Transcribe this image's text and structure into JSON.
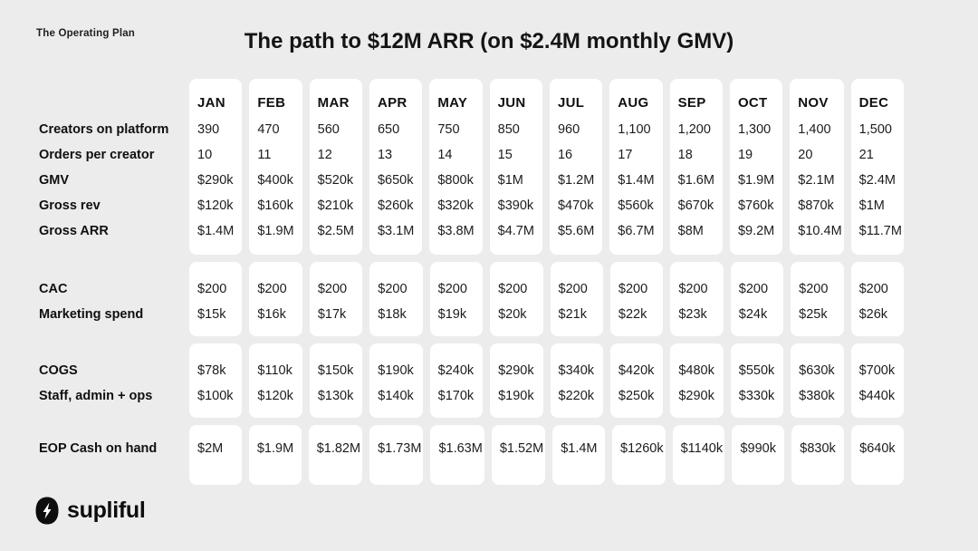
{
  "header": {
    "eyebrow": "The Operating Plan"
  },
  "footer": {
    "brand": "supliful",
    "logo_icon": "lightning-bolt-badge"
  },
  "colors": {
    "background": "#ececec",
    "card": "#ffffff",
    "text": "#1c1c1c"
  },
  "chart_data": {
    "type": "table",
    "title": "The path to $12M ARR (on $2.4M monthly GMV)",
    "columns": [
      "JAN",
      "FEB",
      "MAR",
      "APR",
      "MAY",
      "JUN",
      "JUL",
      "AUG",
      "SEP",
      "OCT",
      "NOV",
      "DEC"
    ],
    "sections": [
      {
        "show_month_header": true,
        "rows": [
          {
            "label": "Creators on platform",
            "values": [
              "390",
              "470",
              "560",
              "650",
              "750",
              "850",
              "960",
              "1,100",
              "1,200",
              "1,300",
              "1,400",
              "1,500"
            ]
          },
          {
            "label": "Orders per creator",
            "values": [
              "10",
              "11",
              "12",
              "13",
              "14",
              "15",
              "16",
              "17",
              "18",
              "19",
              "20",
              "21"
            ]
          },
          {
            "label": "GMV",
            "values": [
              "$290k",
              "$400k",
              "$520k",
              "$650k",
              "$800k",
              "$1M",
              "$1.2M",
              "$1.4M",
              "$1.6M",
              "$1.9M",
              "$2.1M",
              "$2.4M"
            ]
          },
          {
            "label": "Gross rev",
            "values": [
              "$120k",
              "$160k",
              "$210k",
              "$260k",
              "$320k",
              "$390k",
              "$470k",
              "$560k",
              "$670k",
              "$760k",
              "$870k",
              "$1M"
            ]
          },
          {
            "label": "Gross ARR",
            "values": [
              "$1.4M",
              "$1.9M",
              "$2.5M",
              "$3.1M",
              "$3.8M",
              "$4.7M",
              "$5.6M",
              "$6.7M",
              "$8M",
              "$9.2M",
              "$10.4M",
              "$11.7M"
            ]
          }
        ]
      },
      {
        "show_month_header": false,
        "rows": [
          {
            "label": "CAC",
            "values": [
              "$200",
              "$200",
              "$200",
              "$200",
              "$200",
              "$200",
              "$200",
              "$200",
              "$200",
              "$200",
              "$200",
              "$200"
            ]
          },
          {
            "label": "Marketing spend",
            "values": [
              "$15k",
              "$16k",
              "$17k",
              "$18k",
              "$19k",
              "$20k",
              "$21k",
              "$22k",
              "$23k",
              "$24k",
              "$25k",
              "$26k"
            ]
          }
        ]
      },
      {
        "show_month_header": false,
        "rows": [
          {
            "label": "COGS",
            "values": [
              "$78k",
              "$110k",
              "$150k",
              "$190k",
              "$240k",
              "$290k",
              "$340k",
              "$420k",
              "$480k",
              "$550k",
              "$630k",
              "$700k"
            ]
          },
          {
            "label": "Staff, admin + ops",
            "values": [
              "$100k",
              "$120k",
              "$130k",
              "$140k",
              "$170k",
              "$190k",
              "$220k",
              "$250k",
              "$290k",
              "$330k",
              "$380k",
              "$440k"
            ]
          }
        ]
      },
      {
        "show_month_header": false,
        "rows": [
          {
            "label": "EOP Cash on hand",
            "values": [
              "$2M",
              "$1.9M",
              "$1.82M",
              "$1.73M",
              "$1.63M",
              "$1.52M",
              "$1.4M",
              "$1260k",
              "$1140k",
              "$990k",
              "$830k",
              "$640k"
            ]
          }
        ]
      }
    ]
  }
}
